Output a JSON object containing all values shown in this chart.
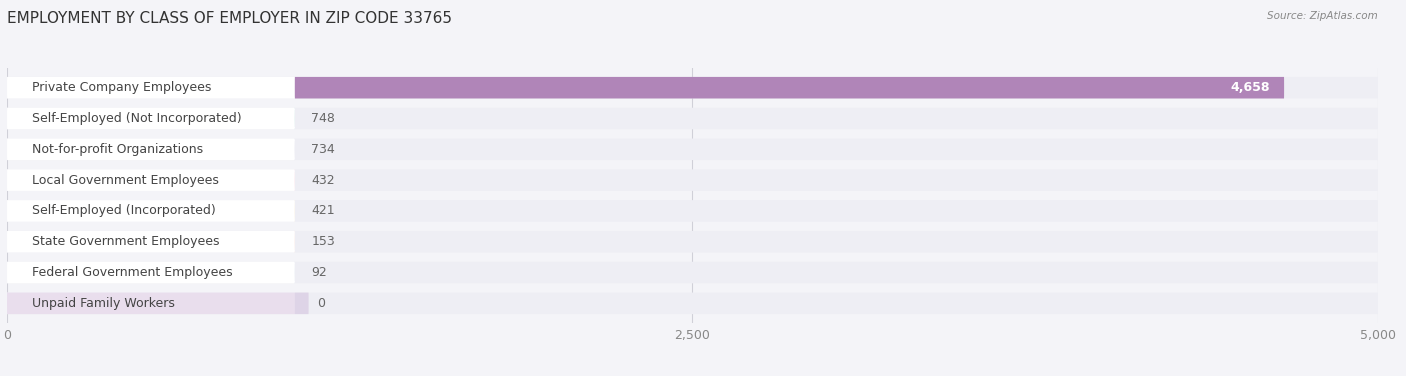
{
  "title": "EMPLOYMENT BY CLASS OF EMPLOYER IN ZIP CODE 33765",
  "source": "Source: ZipAtlas.com",
  "categories": [
    "Private Company Employees",
    "Self-Employed (Not Incorporated)",
    "Not-for-profit Organizations",
    "Local Government Employees",
    "Self-Employed (Incorporated)",
    "State Government Employees",
    "Federal Government Employees",
    "Unpaid Family Workers"
  ],
  "values": [
    4658,
    748,
    734,
    432,
    421,
    153,
    92,
    0
  ],
  "value_labels": [
    "4,658",
    "748",
    "734",
    "432",
    "421",
    "153",
    "92",
    "0"
  ],
  "bar_colors": [
    "#b085b8",
    "#6bbfba",
    "#a8a8d4",
    "#f48aaa",
    "#f5c98a",
    "#f4a898",
    "#a8c4e0",
    "#c8aed4"
  ],
  "xlim": [
    0,
    5000
  ],
  "xticks": [
    0,
    2500,
    5000
  ],
  "xtick_labels": [
    "0",
    "2,500",
    "5,000"
  ],
  "background_color": "#f4f4f8",
  "bar_bg_color": "#eeeef4",
  "title_fontsize": 11,
  "label_fontsize": 9,
  "value_fontsize": 9
}
